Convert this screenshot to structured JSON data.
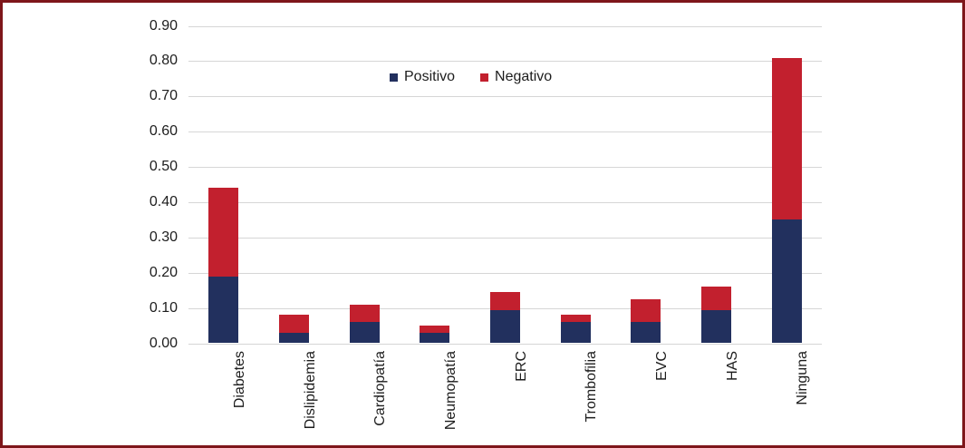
{
  "frame": {
    "border_color": "#7E161A",
    "background": "#FFFFFF"
  },
  "chart_data": {
    "type": "bar",
    "stacked": true,
    "title": "",
    "xlabel": "",
    "ylabel": "",
    "categories": [
      "Diabetes",
      "Dislipidemia",
      "Cardiopatía",
      "Neumopatía",
      "ERC",
      "Trombofilia",
      "EVC",
      "HAS",
      "Ninguna"
    ],
    "series": [
      {
        "name": "Positivo",
        "color": "#22305E",
        "values": [
          0.19,
          0.03,
          0.06,
          0.03,
          0.095,
          0.06,
          0.06,
          0.095,
          0.35
        ]
      },
      {
        "name": "Negativo",
        "color": "#C2202E",
        "values": [
          0.25,
          0.05,
          0.05,
          0.02,
          0.05,
          0.02,
          0.065,
          0.065,
          0.46
        ]
      }
    ],
    "totals": [
      0.44,
      0.08,
      0.11,
      0.05,
      0.145,
      0.08,
      0.125,
      0.16,
      0.81
    ],
    "ylim": [
      0,
      0.9
    ],
    "ytick_step": 0.1,
    "ytick_labels": [
      "0.00",
      "0.10",
      "0.20",
      "0.30",
      "0.40",
      "0.50",
      "0.60",
      "0.70",
      "0.80",
      "0.90"
    ],
    "grid": true,
    "gridline_color": "#D6D6D6",
    "legend_position": "top-center",
    "legend": [
      "Positivo",
      "Negativo"
    ]
  }
}
